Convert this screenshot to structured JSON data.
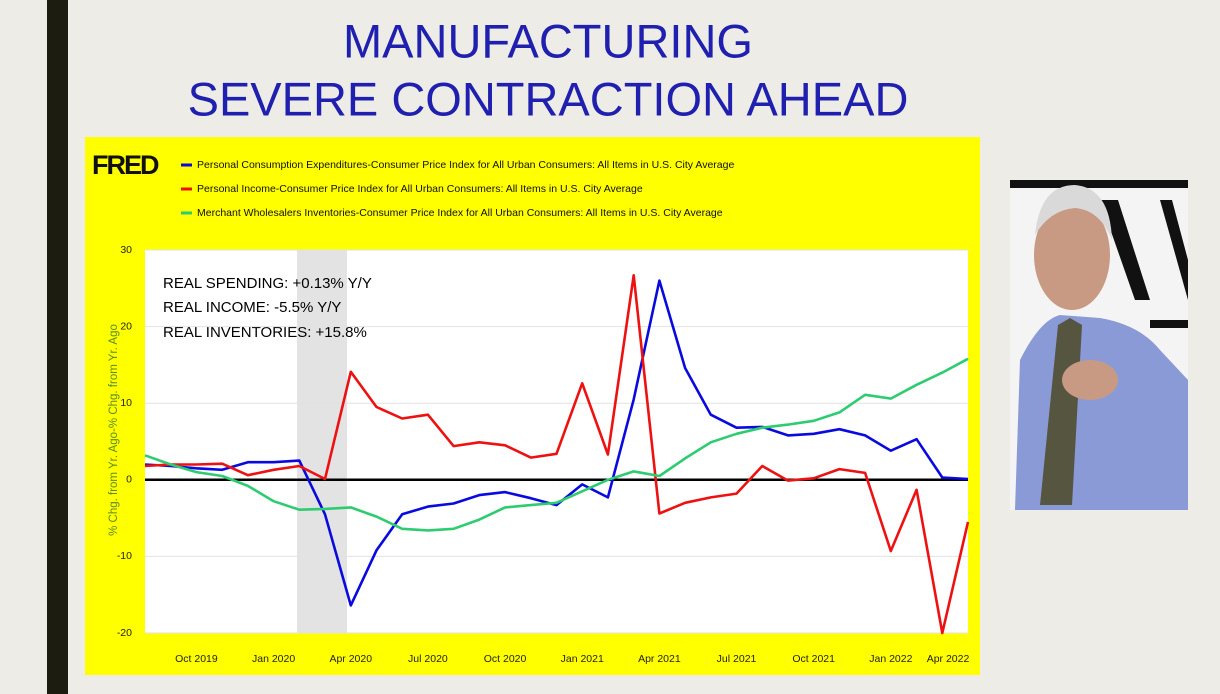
{
  "chart_data": {
    "type": "line",
    "title": [
      "MANUFACTURING",
      "SEVERE CONTRACTION AHEAD"
    ],
    "logo": "FRED",
    "y_label": "% Chg. from Yr. Ago-% Chg. from Yr. Ago",
    "annotations": [
      "REAL SPENDING: +0.13% Y/Y",
      "REAL INCOME: -5.5% Y/Y",
      "REAL INVENTORIES: +15.8%"
    ],
    "categories": [
      null,
      null,
      "Oct 2019",
      null,
      null,
      "Jan 2020",
      null,
      null,
      "Apr 2020",
      null,
      null,
      "Jul 2020",
      null,
      null,
      "Oct 2020",
      null,
      null,
      "Jan 2021",
      null,
      null,
      "Apr 2021",
      null,
      null,
      "Jul 2021",
      null,
      null,
      "Oct 2021",
      null,
      null,
      "Jan 2022",
      null,
      null,
      "Apr 2022"
    ],
    "series": [
      {
        "name": "Personal Consumption Expenditures-Consumer Price Index for All Urban Consumers: All Items in U.S. City Average",
        "color": "#0a0ae0",
        "values": [
          2.0,
          1.8,
          1.5,
          1.3,
          2.3,
          2.3,
          2.5,
          -4.5,
          -16.4,
          -9.2,
          -4.5,
          -3.5,
          -3.1,
          -2.0,
          -1.6,
          -2.4,
          -3.3,
          -0.6,
          -2.3,
          10.5,
          26.0,
          14.6,
          8.5,
          6.8,
          6.9,
          5.8,
          6.0,
          6.6,
          5.8,
          3.8,
          5.3,
          0.3,
          0.1
        ]
      },
      {
        "name": "Personal Income-Consumer Price Index for All Urban Consumers: All Items in U.S. City Average",
        "color": "#ee1111",
        "values": [
          1.8,
          2.0,
          2.0,
          2.1,
          0.6,
          1.3,
          1.8,
          0.1,
          14.1,
          9.5,
          8.0,
          8.5,
          4.4,
          4.9,
          4.5,
          2.9,
          3.4,
          12.6,
          3.3,
          26.7,
          -4.4,
          -3.0,
          -2.3,
          -1.8,
          1.8,
          -0.1,
          0.2,
          1.4,
          0.9,
          -9.3,
          -1.3,
          -20.0,
          -5.5
        ]
      },
      {
        "name": "Merchant Wholesalers Inventories-Consumer Price Index for All Urban Consumers: All Items in U.S. City Average",
        "color": "#2ecc71",
        "values": [
          3.2,
          2.0,
          1.0,
          0.5,
          -0.8,
          -2.8,
          -3.9,
          -3.8,
          -3.6,
          -4.8,
          -6.4,
          -6.6,
          -6.4,
          -5.2,
          -3.6,
          -3.3,
          -3.0,
          -1.5,
          0.0,
          1.1,
          0.5,
          2.8,
          4.9,
          6.0,
          6.8,
          7.2,
          7.7,
          8.8,
          11.1,
          10.6,
          12.4,
          14.0,
          15.8
        ]
      }
    ],
    "ylim": [
      -20,
      30
    ],
    "yticks": [
      -20,
      -10,
      0,
      10,
      20,
      30
    ],
    "grid": true
  }
}
